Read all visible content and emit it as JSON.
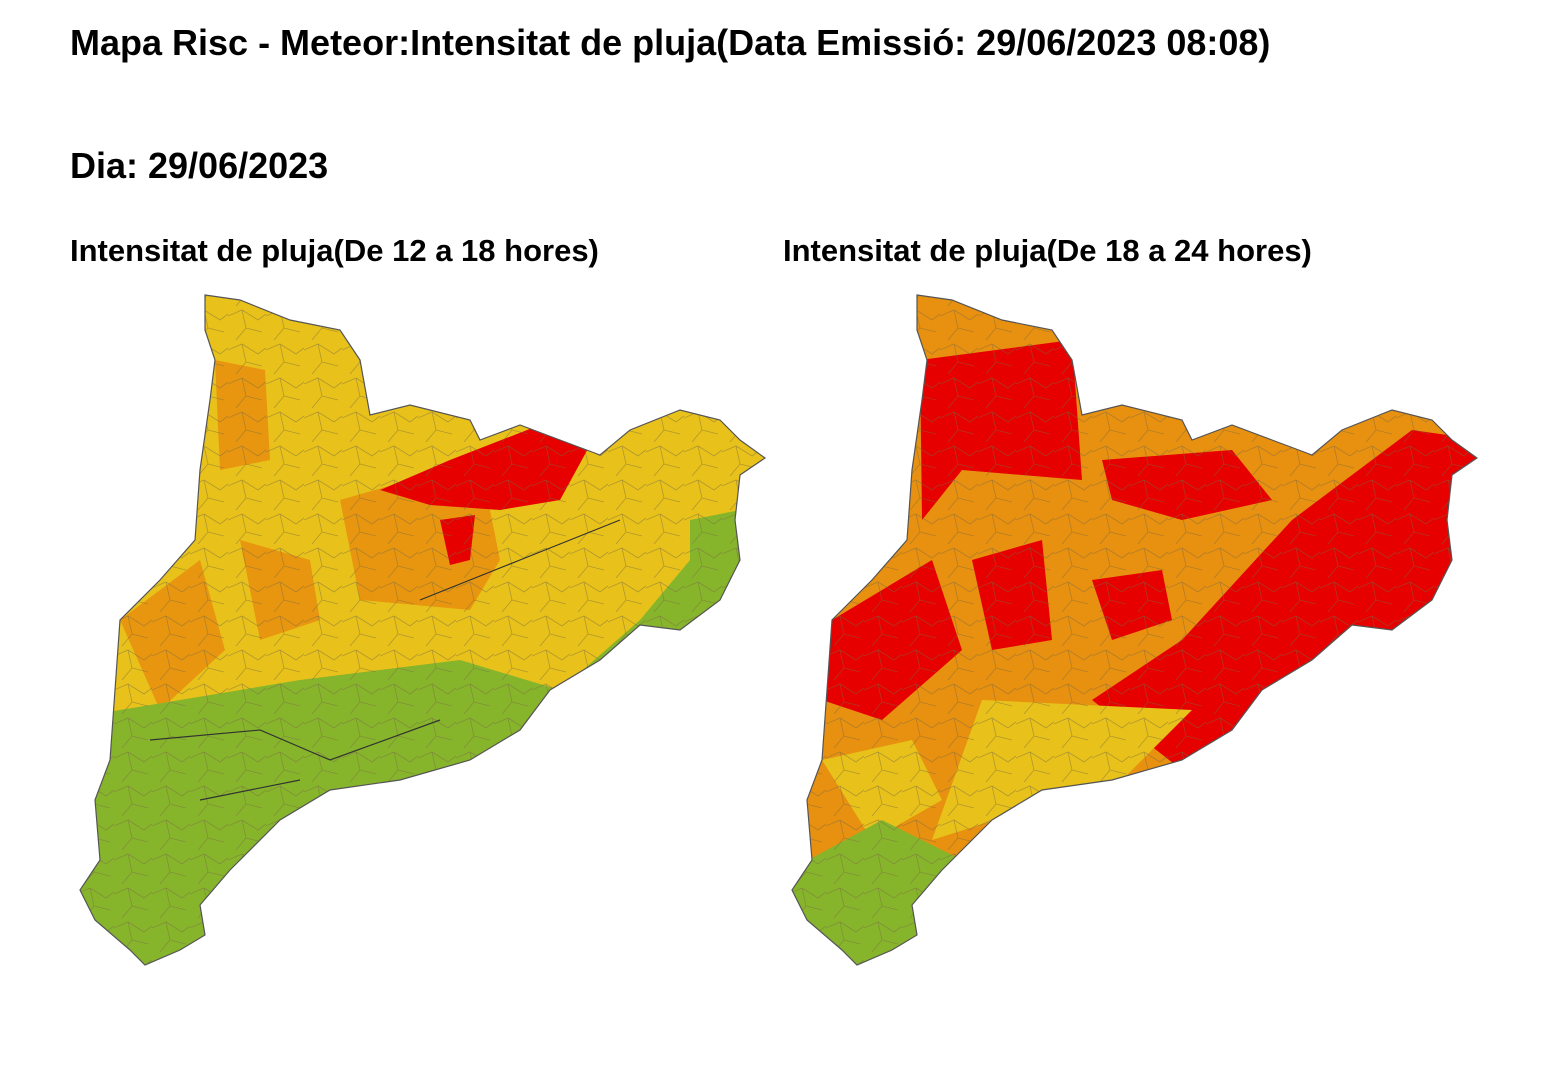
{
  "header": {
    "title": "Mapa Risc - Meteor:Intensitat de pluja(Data Emissió: 29/06/2023 08:08)"
  },
  "day": "Dia: 29/06/2023",
  "maps": [
    {
      "title": "Intensitat de pluja(De 12 a 18 hores)"
    },
    {
      "title": "Intensitat de pluja(De 18 a 24 hores)"
    }
  ]
}
